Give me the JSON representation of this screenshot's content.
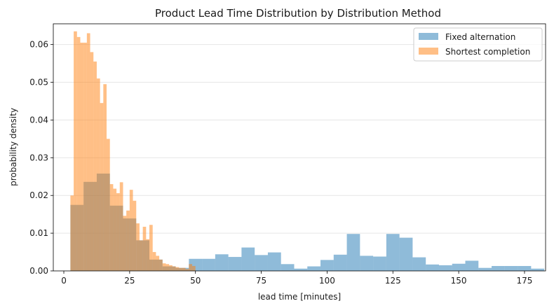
{
  "chart_data": {
    "type": "histogram",
    "title": "Product Lead Time Distribution by Distribution Method",
    "xlabel": "lead time [minutes]",
    "ylabel": "probability density",
    "xlim": [
      -4,
      183
    ],
    "ylim": [
      0,
      0.0655
    ],
    "xticks": [
      0,
      25,
      50,
      75,
      100,
      125,
      150,
      175
    ],
    "yticks": [
      0.0,
      0.01,
      0.02,
      0.03,
      0.04,
      0.05,
      0.06
    ],
    "ytick_format": "3dp",
    "grid": "y-only",
    "legend_position": "top-right",
    "series": [
      {
        "name": "Fixed alternation",
        "color": "#1f77b4",
        "alpha": 0.5,
        "bins": [
          {
            "x0": 2.5,
            "x1": 7.5,
            "y": 0.0175
          },
          {
            "x0": 7.5,
            "x1": 12.5,
            "y": 0.0236
          },
          {
            "x0": 12.5,
            "x1": 17.5,
            "y": 0.0258
          },
          {
            "x0": 17.5,
            "x1": 22.5,
            "y": 0.0173
          },
          {
            "x0": 22.5,
            "x1": 27.5,
            "y": 0.0139
          },
          {
            "x0": 27.5,
            "x1": 32.5,
            "y": 0.0081
          },
          {
            "x0": 32.5,
            "x1": 37.5,
            "y": 0.003
          },
          {
            "x0": 37.5,
            "x1": 42.5,
            "y": 0.0012
          },
          {
            "x0": 42.5,
            "x1": 47.5,
            "y": 0.0008
          },
          {
            "x0": 47.5,
            "x1": 52.5,
            "y": 0.0032
          },
          {
            "x0": 52.5,
            "x1": 57.5,
            "y": 0.0032
          },
          {
            "x0": 57.5,
            "x1": 62.5,
            "y": 0.0044
          },
          {
            "x0": 62.5,
            "x1": 67.5,
            "y": 0.0037
          },
          {
            "x0": 67.5,
            "x1": 72.5,
            "y": 0.0062
          },
          {
            "x0": 72.5,
            "x1": 77.5,
            "y": 0.0042
          },
          {
            "x0": 77.5,
            "x1": 82.5,
            "y": 0.0049
          },
          {
            "x0": 82.5,
            "x1": 87.5,
            "y": 0.0018
          },
          {
            "x0": 87.5,
            "x1": 92.5,
            "y": 0.0006
          },
          {
            "x0": 92.5,
            "x1": 97.5,
            "y": 0.0012
          },
          {
            "x0": 97.5,
            "x1": 102.5,
            "y": 0.0029
          },
          {
            "x0": 102.5,
            "x1": 107.5,
            "y": 0.0043
          },
          {
            "x0": 107.5,
            "x1": 112.5,
            "y": 0.0098
          },
          {
            "x0": 112.5,
            "x1": 117.5,
            "y": 0.004
          },
          {
            "x0": 117.5,
            "x1": 122.5,
            "y": 0.0038
          },
          {
            "x0": 122.5,
            "x1": 127.5,
            "y": 0.0098
          },
          {
            "x0": 127.5,
            "x1": 132.5,
            "y": 0.0088
          },
          {
            "x0": 132.5,
            "x1": 137.5,
            "y": 0.0036
          },
          {
            "x0": 137.5,
            "x1": 142.5,
            "y": 0.0017
          },
          {
            "x0": 142.5,
            "x1": 147.5,
            "y": 0.0015
          },
          {
            "x0": 147.5,
            "x1": 152.5,
            "y": 0.0019
          },
          {
            "x0": 152.5,
            "x1": 157.5,
            "y": 0.0027
          },
          {
            "x0": 157.5,
            "x1": 162.5,
            "y": 0.0008
          },
          {
            "x0": 162.5,
            "x1": 167.5,
            "y": 0.0013
          },
          {
            "x0": 167.5,
            "x1": 172.5,
            "y": 0.0013
          },
          {
            "x0": 172.5,
            "x1": 177.5,
            "y": 0.0013
          },
          {
            "x0": 177.5,
            "x1": 182.5,
            "y": 0.0006
          }
        ]
      },
      {
        "name": "Shortest completion",
        "color": "#ff7f0e",
        "alpha": 0.5,
        "bins": [
          {
            "x0": 2.5,
            "x1": 3.75,
            "y": 0.02
          },
          {
            "x0": 3.75,
            "x1": 5.0,
            "y": 0.0635
          },
          {
            "x0": 5.0,
            "x1": 6.25,
            "y": 0.062
          },
          {
            "x0": 6.25,
            "x1": 7.5,
            "y": 0.0605
          },
          {
            "x0": 7.5,
            "x1": 8.75,
            "y": 0.0605
          },
          {
            "x0": 8.75,
            "x1": 10.0,
            "y": 0.063
          },
          {
            "x0": 10.0,
            "x1": 11.25,
            "y": 0.058
          },
          {
            "x0": 11.25,
            "x1": 12.5,
            "y": 0.0555
          },
          {
            "x0": 12.5,
            "x1": 13.75,
            "y": 0.051
          },
          {
            "x0": 13.75,
            "x1": 15.0,
            "y": 0.0445
          },
          {
            "x0": 15.0,
            "x1": 16.25,
            "y": 0.0495
          },
          {
            "x0": 16.25,
            "x1": 17.5,
            "y": 0.035
          },
          {
            "x0": 17.5,
            "x1": 18.75,
            "y": 0.023
          },
          {
            "x0": 18.75,
            "x1": 20.0,
            "y": 0.0218
          },
          {
            "x0": 20.0,
            "x1": 21.25,
            "y": 0.0206
          },
          {
            "x0": 21.25,
            "x1": 22.5,
            "y": 0.0235
          },
          {
            "x0": 22.5,
            "x1": 23.75,
            "y": 0.0146
          },
          {
            "x0": 23.75,
            "x1": 25.0,
            "y": 0.016
          },
          {
            "x0": 25.0,
            "x1": 26.25,
            "y": 0.0215
          },
          {
            "x0": 26.25,
            "x1": 27.5,
            "y": 0.0186
          },
          {
            "x0": 27.5,
            "x1": 28.75,
            "y": 0.0126
          },
          {
            "x0": 28.75,
            "x1": 30.0,
            "y": 0.0081
          },
          {
            "x0": 30.0,
            "x1": 31.25,
            "y": 0.0117
          },
          {
            "x0": 31.25,
            "x1": 32.5,
            "y": 0.0084
          },
          {
            "x0": 32.5,
            "x1": 33.75,
            "y": 0.0122
          },
          {
            "x0": 33.75,
            "x1": 35.0,
            "y": 0.005
          },
          {
            "x0": 35.0,
            "x1": 36.25,
            "y": 0.004
          },
          {
            "x0": 36.25,
            "x1": 37.5,
            "y": 0.003
          },
          {
            "x0": 37.5,
            "x1": 38.75,
            "y": 0.002
          },
          {
            "x0": 38.75,
            "x1": 40.0,
            "y": 0.0018
          },
          {
            "x0": 40.0,
            "x1": 41.25,
            "y": 0.0015
          },
          {
            "x0": 41.25,
            "x1": 42.5,
            "y": 0.0012
          },
          {
            "x0": 42.5,
            "x1": 43.75,
            "y": 0.001
          },
          {
            "x0": 43.75,
            "x1": 45.0,
            "y": 0.0008
          },
          {
            "x0": 45.0,
            "x1": 46.25,
            "y": 0.0008
          },
          {
            "x0": 46.25,
            "x1": 47.5,
            "y": 0.0005
          },
          {
            "x0": 47.5,
            "x1": 48.75,
            "y": 0.0018
          },
          {
            "x0": 48.75,
            "x1": 50.0,
            "y": 0.0013
          }
        ]
      }
    ]
  }
}
